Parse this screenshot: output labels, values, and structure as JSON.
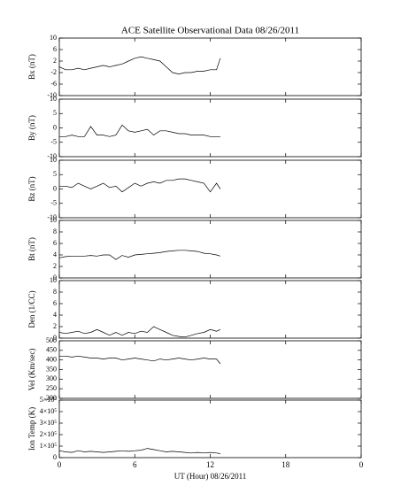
{
  "chart_data": [
    {
      "type": "line",
      "title": "ACE Satellite Observational Data   08/26/2011",
      "ylabel": "Bx (nT)",
      "x": [
        0,
        0.5,
        1,
        1.5,
        2,
        2.5,
        3,
        3.5,
        4,
        4.5,
        5,
        5.5,
        6,
        6.5,
        7,
        7.5,
        8,
        8.5,
        9,
        9.5,
        10,
        10.5,
        11,
        11.5,
        12,
        12.5,
        12.8
      ],
      "values": [
        0,
        -1,
        -1,
        -0.5,
        -1,
        -0.5,
        0,
        0.5,
        0,
        0.5,
        1,
        2,
        3,
        3.5,
        3,
        2.5,
        2,
        0,
        -2,
        -2.5,
        -2,
        -2,
        -1.5,
        -1.5,
        -1,
        -1,
        3
      ],
      "xlim": [
        0,
        24
      ],
      "ylim": [
        -10,
        10
      ],
      "yticks": [
        -10,
        -6,
        -2,
        2,
        6,
        10
      ]
    },
    {
      "type": "line",
      "ylabel": "By (nT)",
      "x": [
        0,
        0.5,
        1,
        1.5,
        2,
        2.5,
        3,
        3.5,
        4,
        4.5,
        5,
        5.5,
        6,
        6.5,
        7,
        7.5,
        8,
        8.5,
        9,
        9.5,
        10,
        10.5,
        11,
        11.5,
        12,
        12.5,
        12.8
      ],
      "values": [
        -3,
        -3,
        -2.5,
        -3,
        -3,
        0.5,
        -2.5,
        -2.5,
        -3,
        -2.5,
        1,
        -1,
        -1.5,
        -1,
        -0.5,
        -2.5,
        -1,
        -1,
        -1.5,
        -2,
        -2,
        -2.5,
        -2.5,
        -2.5,
        -3,
        -3,
        -3
      ],
      "xlim": [
        0,
        24
      ],
      "ylim": [
        -10,
        10
      ],
      "yticks": [
        -10,
        -5,
        0,
        5,
        10
      ]
    },
    {
      "type": "line",
      "ylabel": "Bz (nT)",
      "x": [
        0,
        0.5,
        1,
        1.5,
        2,
        2.5,
        3,
        3.5,
        4,
        4.5,
        5,
        5.5,
        6,
        6.5,
        7,
        7.5,
        8,
        8.5,
        9,
        9.5,
        10,
        10.5,
        11,
        11.5,
        12,
        12.5,
        12.8
      ],
      "values": [
        1,
        1,
        0.5,
        2,
        1,
        0,
        1,
        2,
        0.5,
        1,
        -1,
        0.5,
        2,
        1,
        2,
        2.5,
        2,
        3,
        3,
        3.5,
        3.5,
        3,
        2.5,
        2,
        -1,
        2,
        0
      ],
      "xlim": [
        0,
        24
      ],
      "ylim": [
        -10,
        10
      ],
      "yticks": [
        -10,
        -5,
        0,
        5,
        10
      ]
    },
    {
      "type": "line",
      "ylabel": "Bt (nT)",
      "x": [
        0,
        0.5,
        1,
        1.5,
        2,
        2.5,
        3,
        3.5,
        4,
        4.5,
        5,
        5.5,
        6,
        6.5,
        7,
        7.5,
        8,
        8.5,
        9,
        9.5,
        10,
        10.5,
        11,
        11.5,
        12,
        12.5,
        12.8
      ],
      "values": [
        3.5,
        3.7,
        3.8,
        3.8,
        3.8,
        3.9,
        3.8,
        4,
        4,
        3.2,
        3.9,
        3.6,
        4,
        4.1,
        4.2,
        4.3,
        4.4,
        4.6,
        4.7,
        4.8,
        4.8,
        4.7,
        4.6,
        4.3,
        4.2,
        4,
        3.8
      ],
      "xlim": [
        0,
        24
      ],
      "ylim": [
        0,
        10
      ],
      "yticks": [
        0,
        2,
        4,
        6,
        8,
        10
      ]
    },
    {
      "type": "line",
      "ylabel": "Den (1/CC)",
      "x": [
        0,
        0.5,
        1,
        1.5,
        2,
        2.5,
        3,
        3.5,
        4,
        4.5,
        5,
        5.5,
        6,
        6.5,
        7,
        7.5,
        8,
        8.5,
        9,
        9.5,
        10,
        10.5,
        11,
        11.5,
        12,
        12.5,
        12.8
      ],
      "values": [
        1,
        0.8,
        1,
        1.2,
        0.8,
        1,
        1.5,
        1,
        0.5,
        1,
        0.5,
        1,
        0.8,
        1.2,
        1,
        2,
        1.5,
        1,
        0.5,
        0.3,
        0.2,
        0.5,
        0.8,
        1,
        1.5,
        1.2,
        1.5
      ],
      "xlim": [
        0,
        24
      ],
      "ylim": [
        0,
        10
      ],
      "yticks": [
        0,
        2,
        4,
        6,
        8,
        10
      ]
    },
    {
      "type": "line",
      "ylabel": "Vel (Km/sec)",
      "x": [
        0,
        0.5,
        1,
        1.5,
        2,
        2.5,
        3,
        3.5,
        4,
        4.5,
        5,
        5.5,
        6,
        6.5,
        7,
        7.5,
        8,
        8.5,
        9,
        9.5,
        10,
        10.5,
        11,
        11.5,
        12,
        12.5,
        12.8
      ],
      "values": [
        420,
        420,
        415,
        420,
        415,
        410,
        410,
        405,
        410,
        410,
        400,
        405,
        410,
        405,
        400,
        395,
        405,
        400,
        405,
        410,
        405,
        400,
        405,
        410,
        405,
        405,
        380
      ],
      "xlim": [
        0,
        24
      ],
      "ylim": [
        200,
        500
      ],
      "yticks": [
        200,
        250,
        300,
        350,
        400,
        450,
        500
      ]
    },
    {
      "type": "line",
      "ylabel": "Ion Temp (K)",
      "xlabel": "UT (Hour)  08/26/2011",
      "x": [
        0,
        0.5,
        1,
        1.5,
        2,
        2.5,
        3,
        3.5,
        4,
        4.5,
        5,
        5.5,
        6,
        6.5,
        7,
        7.5,
        8,
        8.5,
        9,
        9.5,
        10,
        10.5,
        11,
        11.5,
        12,
        12.5,
        12.8
      ],
      "values": [
        60000,
        50000,
        45000,
        60000,
        50000,
        55000,
        50000,
        45000,
        50000,
        55000,
        60000,
        55000,
        60000,
        65000,
        80000,
        70000,
        60000,
        50000,
        55000,
        50000,
        45000,
        40000,
        45000,
        40000,
        45000,
        40000,
        35000
      ],
      "xlim": [
        0,
        24
      ],
      "ylim": [
        0,
        500000
      ],
      "yticks": [
        0,
        {
          "value": 100000,
          "label": "1×10⁵"
        },
        {
          "value": 200000,
          "label": "2×10⁵"
        },
        {
          "value": 300000,
          "label": "3×10⁵"
        },
        {
          "value": 400000,
          "label": "4×10⁵"
        },
        {
          "value": 500000,
          "label": "5×10⁵"
        }
      ],
      "xticks": [
        0,
        6,
        12,
        18,
        {
          "value": 24,
          "label": "0"
        }
      ]
    }
  ]
}
